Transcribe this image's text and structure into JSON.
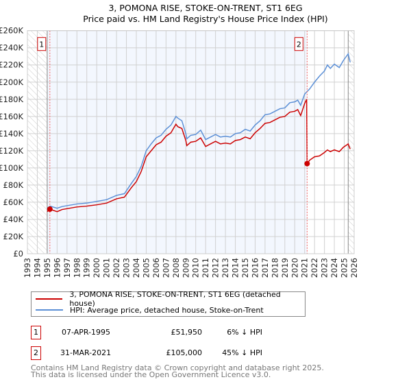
{
  "title_line1": "3, POMONA RISE, STOKE-ON-TRENT, ST1 6EG",
  "title_line2": "Price paid vs. HM Land Registry's House Price Index (HPI)",
  "chart_data": {
    "type": "line",
    "title": "3, POMONA RISE, STOKE-ON-TRENT, ST1 6EG — Price paid vs. HM Land Registry's House Price Index (HPI)",
    "xlim": [
      1993,
      2026
    ],
    "ylim": [
      0,
      260000
    ],
    "x_ticks": [
      1993,
      1994,
      1995,
      1996,
      1997,
      1998,
      1999,
      2000,
      2001,
      2002,
      2003,
      2004,
      2005,
      2006,
      2007,
      2008,
      2009,
      2010,
      2011,
      2012,
      2013,
      2014,
      2015,
      2016,
      2017,
      2018,
      2019,
      2020,
      2021,
      2022,
      2023,
      2024,
      2025,
      2026
    ],
    "y_ticks": [
      0,
      20000,
      40000,
      60000,
      80000,
      100000,
      120000,
      140000,
      160000,
      180000,
      200000,
      220000,
      240000,
      260000
    ],
    "y_tick_labels": [
      "£0",
      "£20K",
      "£40K",
      "£60K",
      "£80K",
      "£100K",
      "£120K",
      "£140K",
      "£160K",
      "£180K",
      "£200K",
      "£220K",
      "£240K",
      "£260K"
    ],
    "grid": true,
    "data_range": [
      1995.0,
      2025.4
    ],
    "series": [
      {
        "name": "3, POMONA RISE, STOKE-ON-TRENT, ST1 6EG (detached house)",
        "color": "#cc0000",
        "points": [
          [
            1995.0,
            49
          ],
          [
            1995.27,
            51.95
          ],
          [
            1996,
            49
          ],
          [
            1996.5,
            51.5
          ],
          [
            1997,
            52.5
          ],
          [
            1998,
            54.5
          ],
          [
            1999,
            55.5
          ],
          [
            2000,
            57
          ],
          [
            2001,
            59
          ],
          [
            2002,
            64
          ],
          [
            2002.8,
            66
          ],
          [
            2003.5,
            77
          ],
          [
            2004,
            84
          ],
          [
            2004.5,
            96
          ],
          [
            2005,
            113
          ],
          [
            2005.5,
            120
          ],
          [
            2006,
            127
          ],
          [
            2006.5,
            130
          ],
          [
            2007,
            137
          ],
          [
            2007.5,
            141
          ],
          [
            2008,
            151
          ],
          [
            2008.2,
            148
          ],
          [
            2008.6,
            146
          ],
          [
            2009,
            132
          ],
          [
            2009.1,
            126
          ],
          [
            2009.5,
            130
          ],
          [
            2010,
            131
          ],
          [
            2010.5,
            135
          ],
          [
            2011,
            125
          ],
          [
            2011.5,
            128
          ],
          [
            2012,
            131
          ],
          [
            2012.5,
            128
          ],
          [
            2013,
            129
          ],
          [
            2013.5,
            128
          ],
          [
            2014,
            132
          ],
          [
            2014.5,
            133
          ],
          [
            2015,
            136
          ],
          [
            2015.5,
            134
          ],
          [
            2016,
            141
          ],
          [
            2016.5,
            146
          ],
          [
            2017,
            152
          ],
          [
            2017.5,
            153
          ],
          [
            2018,
            156
          ],
          [
            2018.5,
            159
          ],
          [
            2019,
            160
          ],
          [
            2019.5,
            165
          ],
          [
            2020,
            166
          ],
          [
            2020.3,
            168
          ],
          [
            2020.6,
            161
          ],
          [
            2021,
            175
          ],
          [
            2021.2,
            180
          ],
          [
            2021.25,
            105
          ],
          [
            2021.5,
            109
          ],
          [
            2022,
            113
          ],
          [
            2022.5,
            114
          ],
          [
            2023,
            118
          ],
          [
            2023.3,
            121
          ],
          [
            2023.6,
            119
          ],
          [
            2024,
            121
          ],
          [
            2024.5,
            119
          ],
          [
            2024.9,
            124
          ],
          [
            2025.4,
            128
          ],
          [
            2025.6,
            122
          ]
        ]
      },
      {
        "name": "HPI: Average price, detached house, Stoke-on-Trent",
        "color": "#5b8fd6",
        "points": [
          [
            1995.0,
            53
          ],
          [
            1995.3,
            55.5
          ],
          [
            1996,
            53
          ],
          [
            1996.5,
            55
          ],
          [
            1997,
            56
          ],
          [
            1998,
            58
          ],
          [
            1999,
            59
          ],
          [
            2000,
            61
          ],
          [
            2001,
            63
          ],
          [
            2002,
            68
          ],
          [
            2002.8,
            70
          ],
          [
            2003.5,
            82
          ],
          [
            2004,
            90
          ],
          [
            2004.5,
            102
          ],
          [
            2005,
            120
          ],
          [
            2005.5,
            128
          ],
          [
            2006,
            135
          ],
          [
            2006.5,
            138
          ],
          [
            2007,
            145
          ],
          [
            2007.5,
            150
          ],
          [
            2008,
            160
          ],
          [
            2008.2,
            158
          ],
          [
            2008.6,
            155
          ],
          [
            2009,
            140
          ],
          [
            2009.1,
            134
          ],
          [
            2009.5,
            138
          ],
          [
            2010,
            139
          ],
          [
            2010.5,
            144
          ],
          [
            2011,
            133
          ],
          [
            2011.5,
            136
          ],
          [
            2012,
            139
          ],
          [
            2012.5,
            136
          ],
          [
            2013,
            137
          ],
          [
            2013.5,
            136
          ],
          [
            2014,
            140
          ],
          [
            2014.5,
            141
          ],
          [
            2015,
            145
          ],
          [
            2015.5,
            143
          ],
          [
            2016,
            150
          ],
          [
            2016.5,
            155
          ],
          [
            2017,
            162
          ],
          [
            2017.5,
            163
          ],
          [
            2018,
            166
          ],
          [
            2018.5,
            169
          ],
          [
            2019,
            170
          ],
          [
            2019.5,
            176
          ],
          [
            2020,
            177
          ],
          [
            2020.3,
            179
          ],
          [
            2020.6,
            173
          ],
          [
            2021,
            186
          ],
          [
            2021.5,
            192
          ],
          [
            2022,
            200
          ],
          [
            2022.5,
            207
          ],
          [
            2023,
            213
          ],
          [
            2023.3,
            220
          ],
          [
            2023.6,
            216
          ],
          [
            2024,
            221
          ],
          [
            2024.5,
            217
          ],
          [
            2024.9,
            225
          ],
          [
            2025.4,
            233
          ],
          [
            2025.6,
            223
          ]
        ]
      }
    ],
    "y_units": "thousands GBP",
    "sales": [
      {
        "label": "1",
        "x": 1995.27,
        "y": 51.95
      },
      {
        "label": "2",
        "x": 2021.25,
        "y": 105
      }
    ]
  },
  "legend": {
    "items": [
      {
        "label": "3, POMONA RISE, STOKE-ON-TRENT, ST1 6EG (detached house)"
      },
      {
        "label": "HPI: Average price, detached house, Stoke-on-Trent"
      }
    ]
  },
  "transactions": [
    {
      "num": "1",
      "date": "07-APR-1995",
      "price": "£51,950",
      "hpi": "6% ↓ HPI"
    },
    {
      "num": "2",
      "date": "31-MAR-2021",
      "price": "£105,000",
      "hpi": "45% ↓ HPI"
    }
  ],
  "footer": {
    "line1": "Contains HM Land Registry data © Crown copyright and database right 2025.",
    "line2": "This data is licensed under the Open Government Licence v3.0."
  }
}
